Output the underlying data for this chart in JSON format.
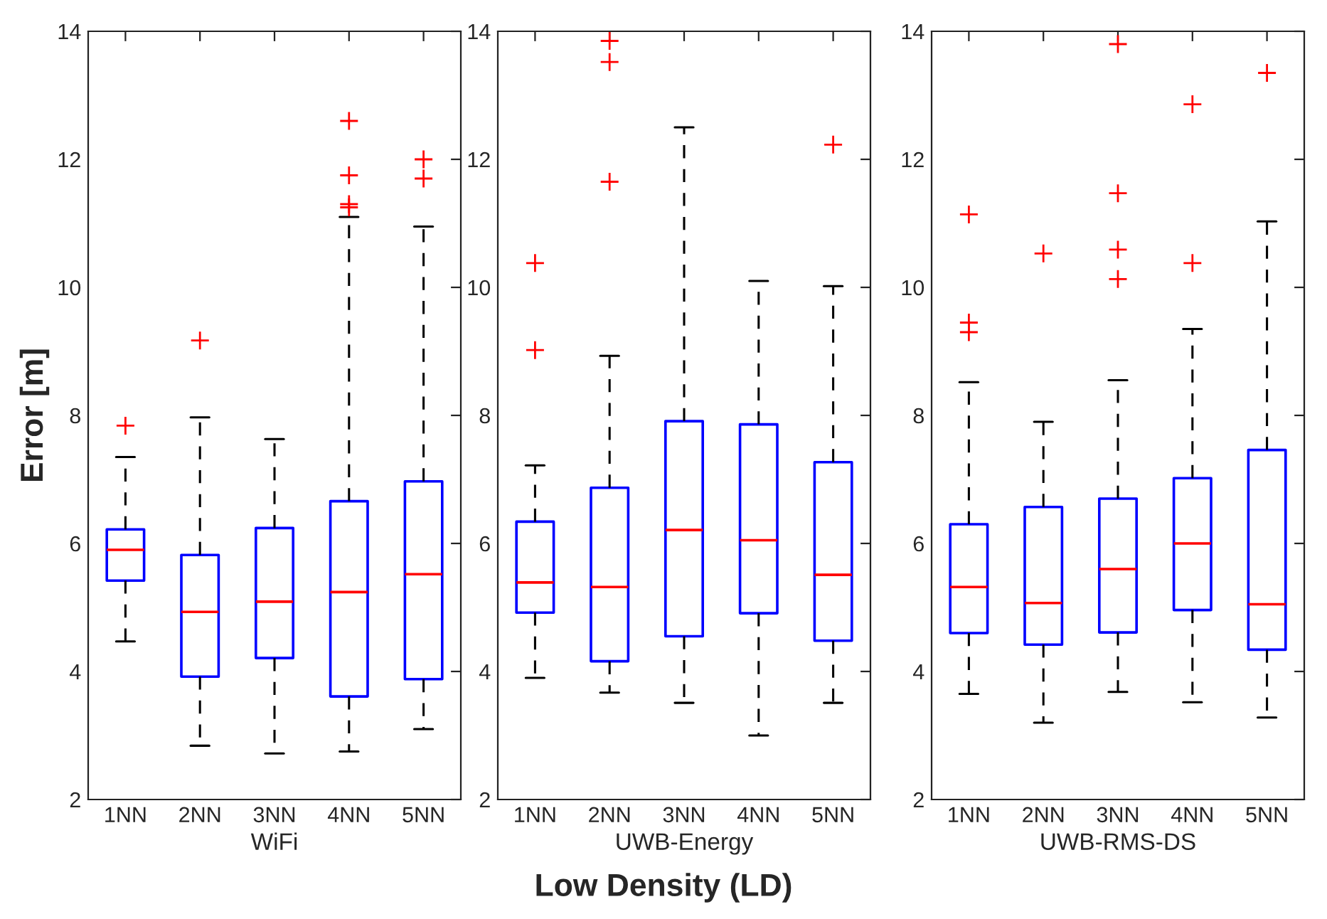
{
  "chart_data": [
    {
      "type": "box",
      "xlabel": "WiFi",
      "ylabel": "Error [m]",
      "categories": [
        "1NN",
        "2NN",
        "3NN",
        "4NN",
        "5NN"
      ],
      "ylim": [
        2,
        14
      ],
      "yticks": [
        2,
        4,
        6,
        8,
        10,
        12,
        14
      ],
      "grid": false,
      "color": "#0000ff",
      "boxes": [
        {
          "low": 4.47,
          "q1": 5.42,
          "median": 5.9,
          "q3": 6.22,
          "high": 7.35,
          "outliers": [
            7.84
          ]
        },
        {
          "low": 2.84,
          "q1": 3.92,
          "median": 4.93,
          "q3": 5.82,
          "high": 7.97,
          "outliers": [
            9.17
          ]
        },
        {
          "low": 2.72,
          "q1": 4.21,
          "median": 5.09,
          "q3": 6.24,
          "high": 7.63
        },
        {
          "low": 2.75,
          "q1": 3.61,
          "median": 5.24,
          "q3": 6.66,
          "high": 11.1,
          "outliers": [
            12.6,
            11.75,
            11.3,
            11.25
          ]
        },
        {
          "low": 3.1,
          "q1": 3.88,
          "median": 5.52,
          "q3": 6.97,
          "high": 10.95,
          "outliers": [
            12.0,
            11.7
          ]
        }
      ]
    },
    {
      "type": "box",
      "xlabel": "UWB-Energy",
      "categories": [
        "1NN",
        "2NN",
        "3NN",
        "4NN",
        "5NN"
      ],
      "ylim": [
        2,
        14
      ],
      "yticks": [
        2,
        4,
        6,
        8,
        10,
        12,
        14
      ],
      "grid": false,
      "color": "#0000ff",
      "annotations": [
        "Low Density (LD)"
      ],
      "boxes": [
        {
          "low": 3.9,
          "q1": 4.92,
          "median": 5.39,
          "q3": 6.34,
          "high": 7.22,
          "outliers": [
            10.38,
            9.02
          ]
        },
        {
          "low": 3.67,
          "q1": 4.16,
          "median": 5.32,
          "q3": 6.87,
          "high": 8.93,
          "outliers": [
            13.85,
            13.52,
            11.65
          ]
        },
        {
          "low": 3.51,
          "q1": 4.55,
          "median": 6.21,
          "q3": 7.91,
          "high": 12.5
        },
        {
          "low": 3.0,
          "q1": 4.91,
          "median": 6.05,
          "q3": 7.86,
          "high": 10.1
        },
        {
          "low": 3.51,
          "q1": 4.48,
          "median": 5.51,
          "q3": 7.27,
          "high": 10.02,
          "outliers": [
            12.23
          ]
        }
      ]
    },
    {
      "type": "box",
      "xlabel": "UWB-RMS-DS",
      "categories": [
        "1NN",
        "2NN",
        "3NN",
        "4NN",
        "5NN"
      ],
      "ylim": [
        2,
        14
      ],
      "yticks": [
        2,
        4,
        6,
        8,
        10,
        12,
        14
      ],
      "grid": false,
      "color": "#0000ff",
      "boxes": [
        {
          "low": 3.65,
          "q1": 4.6,
          "median": 5.32,
          "q3": 6.3,
          "high": 8.52,
          "outliers": [
            11.14,
            9.45,
            9.3
          ]
        },
        {
          "low": 3.2,
          "q1": 4.42,
          "median": 5.07,
          "q3": 6.57,
          "high": 7.9,
          "outliers": [
            10.53
          ]
        },
        {
          "low": 3.68,
          "q1": 4.61,
          "median": 5.6,
          "q3": 6.7,
          "high": 8.55,
          "outliers": [
            13.8,
            11.47,
            10.59,
            10.13
          ]
        },
        {
          "low": 3.52,
          "q1": 4.96,
          "median": 6.0,
          "q3": 7.02,
          "high": 9.35,
          "outliers": [
            12.86,
            10.38
          ]
        },
        {
          "low": 3.28,
          "q1": 4.34,
          "median": 5.05,
          "q3": 7.46,
          "high": 11.03,
          "outliers": [
            13.35
          ]
        }
      ]
    }
  ]
}
